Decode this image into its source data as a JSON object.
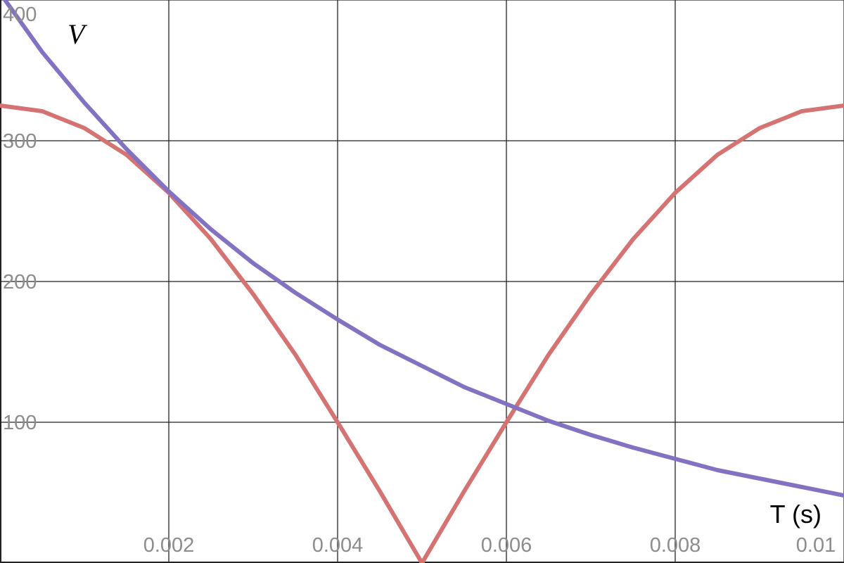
{
  "chart_data": {
    "type": "line",
    "xlabel": "T (s)",
    "ylabel": "V",
    "xlim": [
      0,
      0.01
    ],
    "ylim": [
      0,
      400
    ],
    "x_ticks": [
      0.002,
      0.004,
      0.006,
      0.008,
      0.01
    ],
    "x_tick_labels": [
      "0.002",
      "0.004",
      "0.006",
      "0.008",
      "0.01"
    ],
    "y_ticks": [
      100,
      200,
      300,
      400
    ],
    "y_tick_labels": [
      "100",
      "200",
      "300",
      "400"
    ],
    "grid": true,
    "series": [
      {
        "color": "#d57272",
        "x": [
          0,
          0.0005,
          0.001,
          0.0015,
          0.002,
          0.0025,
          0.003,
          0.0035,
          0.004,
          0.0045,
          0.005,
          0.0055,
          0.006,
          0.0065,
          0.007,
          0.0075,
          0.008,
          0.0085,
          0.009,
          0.0095,
          0.01
        ],
        "values": [
          325,
          321,
          309,
          290,
          263,
          230,
          191,
          148,
          100,
          51,
          0,
          51,
          100,
          148,
          191,
          230,
          263,
          290,
          309,
          321,
          325
        ]
      },
      {
        "color": "#8371c2",
        "x": [
          0,
          0.0005,
          0.001,
          0.0015,
          0.002,
          0.0025,
          0.003,
          0.0035,
          0.004,
          0.0045,
          0.005,
          0.0055,
          0.006,
          0.0065,
          0.007,
          0.0075,
          0.008,
          0.0085,
          0.009,
          0.0095,
          0.01
        ],
        "values": [
          405,
          363,
          327,
          294,
          264,
          237,
          213,
          192,
          173,
          155,
          140,
          125,
          113,
          101,
          91,
          82,
          74,
          66,
          60,
          54,
          48
        ]
      }
    ]
  }
}
